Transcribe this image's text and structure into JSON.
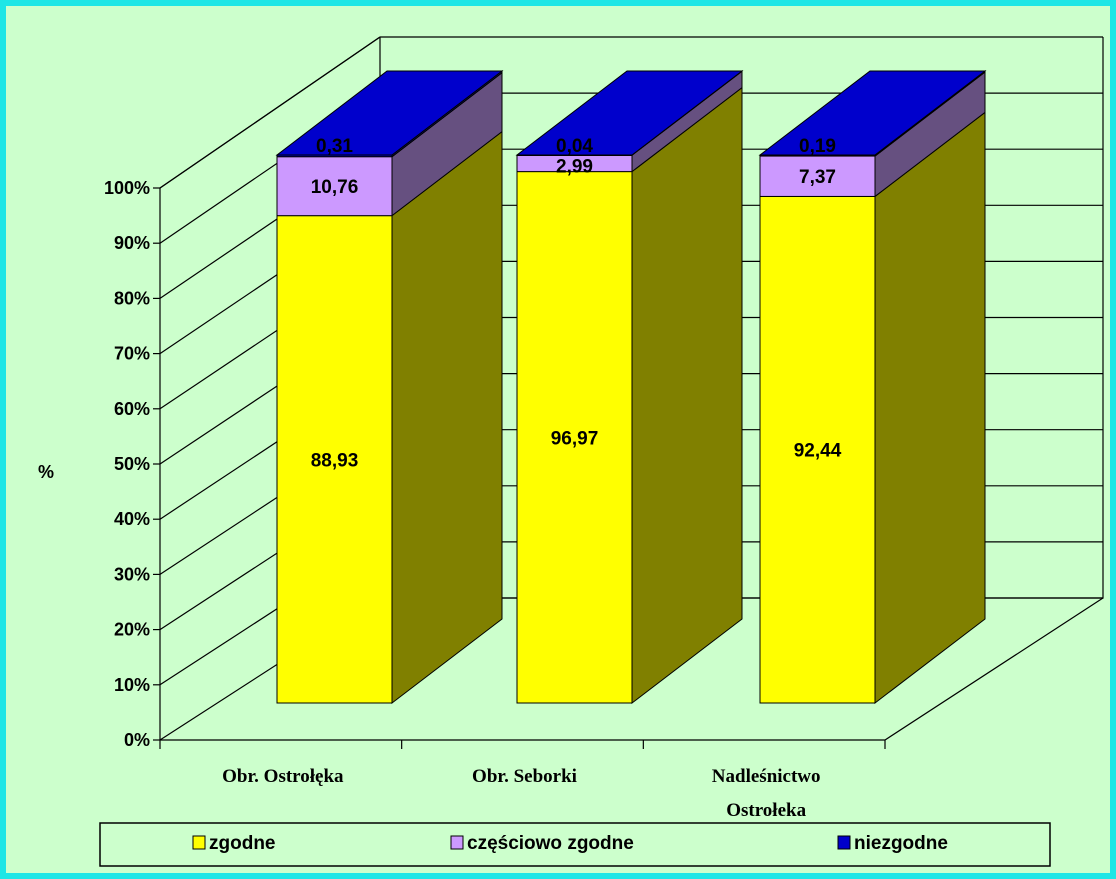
{
  "chart_data": {
    "type": "bar",
    "stacked": true,
    "three_d": true,
    "ylabel": "%",
    "ylim": [
      0,
      100
    ],
    "y_ticks": [
      "0%",
      "10%",
      "20%",
      "30%",
      "40%",
      "50%",
      "60%",
      "70%",
      "80%",
      "90%",
      "100%"
    ],
    "categories": [
      [
        "Obr. Ostrołęka"
      ],
      [
        "Obr. Seborki"
      ],
      [
        "Nadleśnictwo",
        "Ostrołeka"
      ]
    ],
    "series": [
      {
        "name": "zgodne",
        "values": [
          88.93,
          96.97,
          92.44
        ],
        "labels": [
          "88,93",
          "96,97",
          "92,44"
        ],
        "color": "#ffff00",
        "side_color": "#808000",
        "top_color": "#c0c000"
      },
      {
        "name": "częściowo zgodne",
        "values": [
          10.76,
          2.99,
          7.37
        ],
        "labels": [
          "10,76",
          "2,99",
          "7,37"
        ],
        "color": "#cc99ff",
        "side_color": "#665080",
        "top_color": "#a07ad0"
      },
      {
        "name": "niezgodne",
        "values": [
          0.31,
          0.04,
          0.19
        ],
        "labels": [
          "0,31",
          "0,04",
          "0,19"
        ],
        "color": "#0000cc",
        "side_color": "#1a1a99",
        "top_color": "#0000cc"
      }
    ],
    "grid": true,
    "legend_position": "bottom"
  },
  "colors": {
    "frame_border": "#1ee6e6",
    "background": "#ccffcc"
  }
}
